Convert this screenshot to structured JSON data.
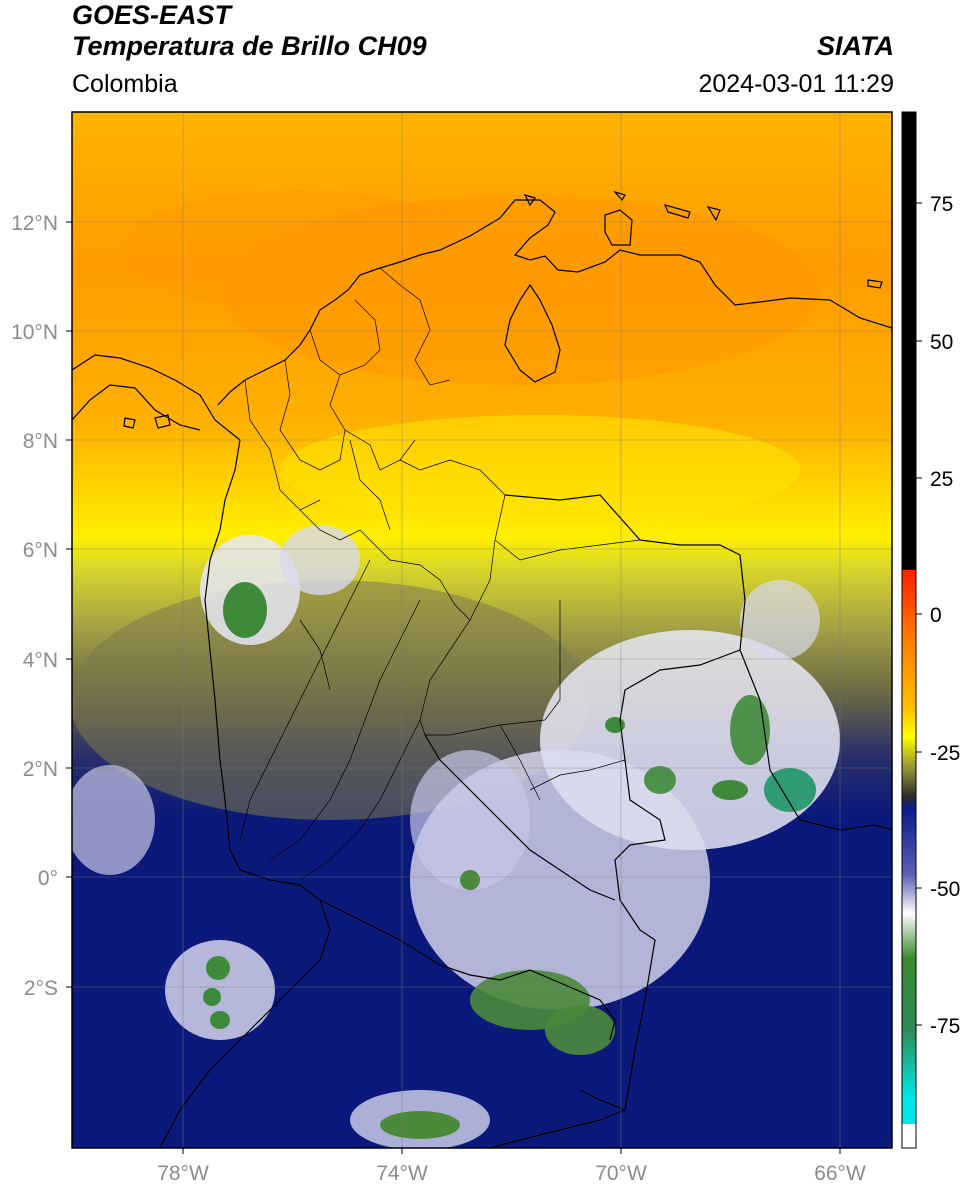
{
  "header": {
    "title_line1": "GOES-EAST",
    "title_line2": "Temperatura de Brillo CH09",
    "region": "Colombia",
    "agency": "SIATA",
    "datetime": "2024-03-01 11:29"
  },
  "map": {
    "lat_labels": [
      "12°N",
      "10°N",
      "8°N",
      "6°N",
      "4°N",
      "2°N",
      "0°",
      "2°S"
    ],
    "lon_labels": [
      "78°W",
      "74°W",
      "70°W",
      "66°W"
    ]
  },
  "colorbar": {
    "tick_labels": [
      "75",
      "50",
      "25",
      "0",
      "-25",
      "-50",
      "-75"
    ],
    "colors": {
      "warm_black": "#000000",
      "red": "#ff2a00",
      "orange": "#ff9900",
      "yellow": "#ffff00",
      "olive": "#8a8a3a",
      "navy": "#0b1a7a",
      "white": "#ffffff",
      "green": "#2e8b32",
      "cyan": "#00e5e5"
    }
  }
}
